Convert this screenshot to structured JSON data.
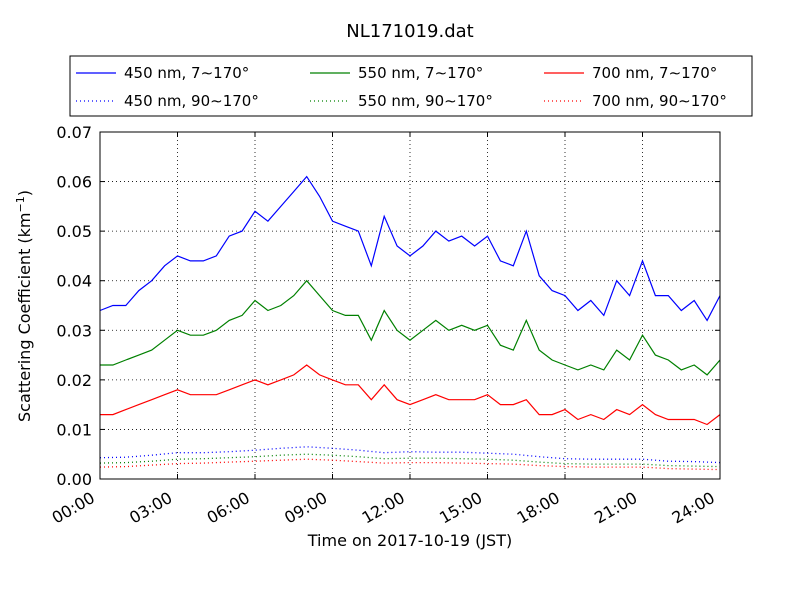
{
  "chart_data": {
    "type": "line",
    "title": "NL171019.dat",
    "xlabel": "Time on 2017-10-19 (JST)",
    "ylabel": "Scattering Coefficient (km",
    "ylabel_sup": "−1",
    "ylabel_close": ")",
    "xlim": [
      0,
      24
    ],
    "ylim": [
      0,
      0.07
    ],
    "x_ticks": [
      0,
      3,
      6,
      9,
      12,
      15,
      18,
      21,
      24
    ],
    "x_tick_labels": [
      "00:00",
      "03:00",
      "06:00",
      "09:00",
      "12:00",
      "15:00",
      "18:00",
      "21:00",
      "24:00"
    ],
    "y_ticks": [
      0,
      0.01,
      0.02,
      0.03,
      0.04,
      0.05,
      0.06,
      0.07
    ],
    "y_tick_labels": [
      "0.00",
      "0.01",
      "0.02",
      "0.03",
      "0.04",
      "0.05",
      "0.06",
      "0.07"
    ],
    "grid": true,
    "legend_position": "top, above plot",
    "series": [
      {
        "name": "450 nm, 7∼170°",
        "color": "#0000ff",
        "style": "solid",
        "x": [
          0,
          0.5,
          1,
          1.5,
          2,
          2.5,
          3,
          3.5,
          4,
          4.5,
          5,
          5.5,
          6,
          6.5,
          7,
          7.5,
          8,
          8.5,
          9,
          9.5,
          10,
          10.5,
          11,
          11.5,
          12,
          12.5,
          13,
          13.5,
          14,
          14.5,
          15,
          15.5,
          16,
          16.5,
          17,
          17.5,
          18,
          18.5,
          19,
          19.5,
          20,
          20.5,
          21,
          21.5,
          22,
          22.5,
          23,
          23.5,
          24
        ],
        "y": [
          0.034,
          0.035,
          0.035,
          0.038,
          0.04,
          0.043,
          0.045,
          0.044,
          0.044,
          0.045,
          0.049,
          0.05,
          0.054,
          0.052,
          0.055,
          0.058,
          0.061,
          0.057,
          0.052,
          0.051,
          0.05,
          0.043,
          0.053,
          0.047,
          0.045,
          0.047,
          0.05,
          0.048,
          0.049,
          0.047,
          0.049,
          0.044,
          0.043,
          0.05,
          0.041,
          0.038,
          0.037,
          0.034,
          0.036,
          0.033,
          0.04,
          0.037,
          0.044,
          0.037,
          0.037,
          0.034,
          0.036,
          0.032,
          0.037
        ]
      },
      {
        "name": "450 nm, 90∼170°",
        "color": "#0000ff",
        "style": "dotted",
        "x": [
          0,
          1,
          2,
          3,
          4,
          5,
          6,
          7,
          8,
          9,
          10,
          11,
          12,
          13,
          14,
          15,
          16,
          17,
          18,
          19,
          20,
          21,
          22,
          23,
          24
        ],
        "y": [
          0.0043,
          0.0044,
          0.0048,
          0.0053,
          0.0053,
          0.0055,
          0.0058,
          0.0062,
          0.0065,
          0.0062,
          0.0058,
          0.0053,
          0.0055,
          0.0054,
          0.0054,
          0.0052,
          0.005,
          0.0045,
          0.0041,
          0.004,
          0.004,
          0.004,
          0.0036,
          0.0035,
          0.0033
        ]
      },
      {
        "name": "550 nm, 7∼170°",
        "color": "#008000",
        "style": "solid",
        "x": [
          0,
          0.5,
          1,
          1.5,
          2,
          2.5,
          3,
          3.5,
          4,
          4.5,
          5,
          5.5,
          6,
          6.5,
          7,
          7.5,
          8,
          8.5,
          9,
          9.5,
          10,
          10.5,
          11,
          11.5,
          12,
          12.5,
          13,
          13.5,
          14,
          14.5,
          15,
          15.5,
          16,
          16.5,
          17,
          17.5,
          18,
          18.5,
          19,
          19.5,
          20,
          20.5,
          21,
          21.5,
          22,
          22.5,
          23,
          23.5,
          24
        ],
        "y": [
          0.023,
          0.023,
          0.024,
          0.025,
          0.026,
          0.028,
          0.03,
          0.029,
          0.029,
          0.03,
          0.032,
          0.033,
          0.036,
          0.034,
          0.035,
          0.037,
          0.04,
          0.037,
          0.034,
          0.033,
          0.033,
          0.028,
          0.034,
          0.03,
          0.028,
          0.03,
          0.032,
          0.03,
          0.031,
          0.03,
          0.031,
          0.027,
          0.026,
          0.032,
          0.026,
          0.024,
          0.023,
          0.022,
          0.023,
          0.022,
          0.026,
          0.024,
          0.029,
          0.025,
          0.024,
          0.022,
          0.023,
          0.021,
          0.024
        ]
      },
      {
        "name": "550 nm, 90∼170°",
        "color": "#008000",
        "style": "dotted",
        "x": [
          0,
          1,
          2,
          3,
          4,
          5,
          6,
          7,
          8,
          9,
          10,
          11,
          12,
          13,
          14,
          15,
          16,
          17,
          18,
          19,
          20,
          21,
          22,
          23,
          24
        ],
        "y": [
          0.0032,
          0.0033,
          0.0036,
          0.004,
          0.0041,
          0.0043,
          0.0045,
          0.0048,
          0.005,
          0.0048,
          0.0045,
          0.0041,
          0.0042,
          0.0042,
          0.0041,
          0.004,
          0.0038,
          0.0034,
          0.0031,
          0.003,
          0.003,
          0.003,
          0.0027,
          0.0026,
          0.0025
        ]
      },
      {
        "name": "700 nm, 7∼170°",
        "color": "#ff0000",
        "style": "solid",
        "x": [
          0,
          0.5,
          1,
          1.5,
          2,
          2.5,
          3,
          3.5,
          4,
          4.5,
          5,
          5.5,
          6,
          6.5,
          7,
          7.5,
          8,
          8.5,
          9,
          9.5,
          10,
          10.5,
          11,
          11.5,
          12,
          12.5,
          13,
          13.5,
          14,
          14.5,
          15,
          15.5,
          16,
          16.5,
          17,
          17.5,
          18,
          18.5,
          19,
          19.5,
          20,
          20.5,
          21,
          21.5,
          22,
          22.5,
          23,
          23.5,
          24
        ],
        "y": [
          0.013,
          0.013,
          0.014,
          0.015,
          0.016,
          0.017,
          0.018,
          0.017,
          0.017,
          0.017,
          0.018,
          0.019,
          0.02,
          0.019,
          0.02,
          0.021,
          0.023,
          0.021,
          0.02,
          0.019,
          0.019,
          0.016,
          0.019,
          0.016,
          0.015,
          0.016,
          0.017,
          0.016,
          0.016,
          0.016,
          0.017,
          0.015,
          0.015,
          0.016,
          0.013,
          0.013,
          0.014,
          0.012,
          0.013,
          0.012,
          0.014,
          0.013,
          0.015,
          0.013,
          0.012,
          0.012,
          0.012,
          0.011,
          0.013
        ]
      },
      {
        "name": "700 nm, 90∼170°",
        "color": "#ff0000",
        "style": "dotted",
        "x": [
          0,
          1,
          2,
          3,
          4,
          5,
          6,
          7,
          8,
          9,
          10,
          11,
          12,
          13,
          14,
          15,
          16,
          17,
          18,
          19,
          20,
          21,
          22,
          23,
          24
        ],
        "y": [
          0.0024,
          0.0025,
          0.0028,
          0.0031,
          0.0032,
          0.0034,
          0.0036,
          0.0038,
          0.004,
          0.0038,
          0.0035,
          0.0032,
          0.0033,
          0.0033,
          0.0032,
          0.0031,
          0.003,
          0.0027,
          0.0025,
          0.0024,
          0.0024,
          0.0024,
          0.0021,
          0.002,
          0.0019
        ]
      }
    ]
  }
}
